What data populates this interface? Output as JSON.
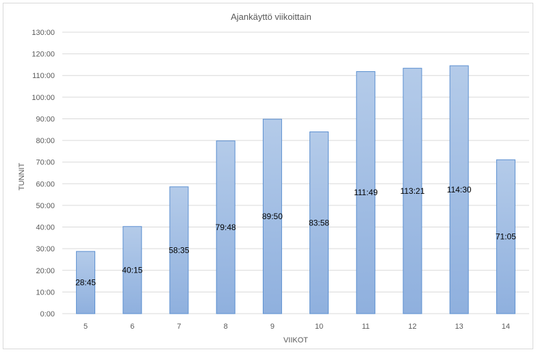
{
  "chart_data": {
    "type": "bar",
    "title": "Ajankäyttö viikoittain",
    "xlabel": "VIIKOT",
    "ylabel": "TUNNIT",
    "categories": [
      "5",
      "6",
      "7",
      "8",
      "9",
      "10",
      "11",
      "12",
      "13",
      "14"
    ],
    "values": [
      28.75,
      40.25,
      58.583,
      79.8,
      89.833,
      83.967,
      111.817,
      113.35,
      114.5,
      71.083
    ],
    "data_labels": [
      "28:45",
      "40:15",
      "58:35",
      "79:48",
      "89:50",
      "83:58",
      "111:49",
      "113:21",
      "114:30",
      "71:05"
    ],
    "yticks": [
      "0:00",
      "10:00",
      "20:00",
      "30:00",
      "40:00",
      "50:00",
      "60:00",
      "70:00",
      "80:00",
      "90:00",
      "100:00",
      "110:00",
      "120:00",
      "130:00"
    ],
    "ylim": [
      0,
      130
    ],
    "grid": true,
    "legend": "none",
    "colors": {
      "bar_top": "#b4cbe9",
      "bar_bottom": "#8fb0de",
      "bar_border": "#5b8fd0",
      "grid": "#d9d9d9",
      "text": "#595959"
    }
  }
}
